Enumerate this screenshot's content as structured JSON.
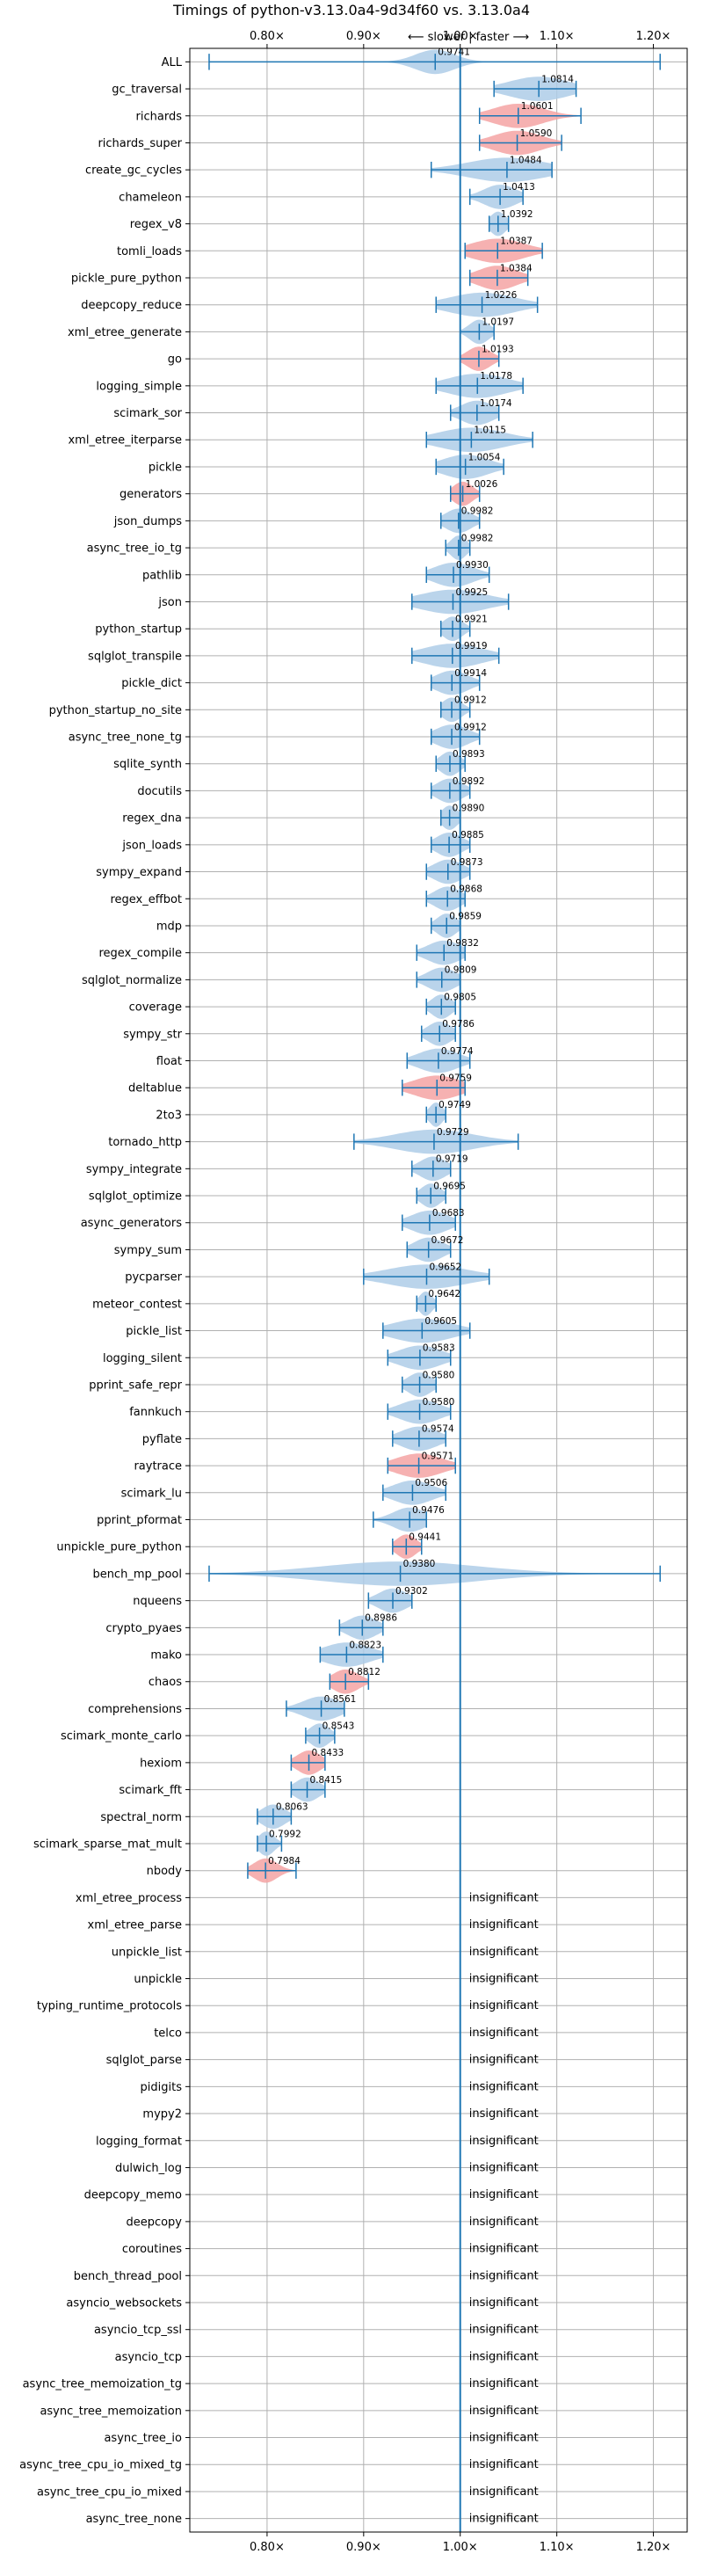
{
  "chart_data": {
    "type": "violin",
    "title": "Timings of python-v3.13.0a4-9d34f60 vs. 3.13.0a4",
    "subtitle": "⟵ slower | faster ⟶",
    "xlim": [
      0.72,
      1.235
    ],
    "xticks": [
      0.8,
      0.9,
      1.0,
      1.1,
      1.2
    ],
    "xtick_labels": [
      "0.80×",
      "0.90×",
      "1.00×",
      "1.10×",
      "1.20×"
    ],
    "reference_line": 1.0,
    "grid": true,
    "colors": {
      "faster": "#aecde8",
      "slower": "#f4a3a3",
      "line": "#1f77b4",
      "grid": "#b0b0b0"
    },
    "benchmarks": [
      {
        "name": "ALL",
        "value": 0.9741,
        "label": "0.9741",
        "min": 0.74,
        "max": 1.207,
        "width": 0.03,
        "color": "blue"
      },
      {
        "name": "gc_traversal",
        "value": 1.0814,
        "label": "1.0814",
        "min": 1.035,
        "max": 1.12,
        "width": 0.045,
        "color": "blue"
      },
      {
        "name": "richards",
        "value": 1.0601,
        "label": "1.0601",
        "min": 1.02,
        "max": 1.125,
        "width": 0.038,
        "color": "red"
      },
      {
        "name": "richards_super",
        "value": 1.059,
        "label": "1.0590",
        "min": 1.02,
        "max": 1.105,
        "width": 0.036,
        "color": "red"
      },
      {
        "name": "create_gc_cycles",
        "value": 1.0484,
        "label": "1.0484",
        "min": 0.97,
        "max": 1.095,
        "width": 0.06,
        "color": "blue"
      },
      {
        "name": "chameleon",
        "value": 1.0413,
        "label": "1.0413",
        "min": 1.01,
        "max": 1.065,
        "width": 0.025,
        "color": "blue"
      },
      {
        "name": "regex_v8",
        "value": 1.0392,
        "label": "1.0392",
        "min": 1.03,
        "max": 1.05,
        "width": 0.012,
        "color": "blue"
      },
      {
        "name": "tomli_loads",
        "value": 1.0387,
        "label": "1.0387",
        "min": 1.005,
        "max": 1.085,
        "width": 0.04,
        "color": "red"
      },
      {
        "name": "pickle_pure_python",
        "value": 1.0384,
        "label": "1.0384",
        "min": 1.01,
        "max": 1.07,
        "width": 0.03,
        "color": "red"
      },
      {
        "name": "deepcopy_reduce",
        "value": 1.0226,
        "label": "1.0226",
        "min": 0.975,
        "max": 1.08,
        "width": 0.05,
        "color": "blue"
      },
      {
        "name": "xml_etree_generate",
        "value": 1.0197,
        "label": "1.0197",
        "min": 1.0,
        "max": 1.035,
        "width": 0.015,
        "color": "blue"
      },
      {
        "name": "go",
        "value": 1.0193,
        "label": "1.0193",
        "min": 1.0,
        "max": 1.04,
        "width": 0.018,
        "color": "red"
      },
      {
        "name": "logging_simple",
        "value": 1.0178,
        "label": "1.0178",
        "min": 0.975,
        "max": 1.065,
        "width": 0.045,
        "color": "blue"
      },
      {
        "name": "scimark_sor",
        "value": 1.0174,
        "label": "1.0174",
        "min": 0.99,
        "max": 1.04,
        "width": 0.025,
        "color": "blue"
      },
      {
        "name": "xml_etree_iterparse",
        "value": 1.0115,
        "label": "1.0115",
        "min": 0.965,
        "max": 1.075,
        "width": 0.05,
        "color": "blue"
      },
      {
        "name": "pickle",
        "value": 1.0054,
        "label": "1.0054",
        "min": 0.975,
        "max": 1.045,
        "width": 0.035,
        "color": "blue"
      },
      {
        "name": "generators",
        "value": 1.0026,
        "label": "1.0026",
        "min": 0.99,
        "max": 1.02,
        "width": 0.015,
        "color": "red"
      },
      {
        "name": "json_dumps",
        "value": 0.9982,
        "label": "0.9982",
        "min": 0.98,
        "max": 1.02,
        "width": 0.02,
        "color": "blue"
      },
      {
        "name": "async_tree_io_tg",
        "value": 0.9982,
        "label": "0.9982",
        "min": 0.985,
        "max": 1.01,
        "width": 0.012,
        "color": "blue"
      },
      {
        "name": "pathlib",
        "value": 0.993,
        "label": "0.9930",
        "min": 0.965,
        "max": 1.03,
        "width": 0.03,
        "color": "blue"
      },
      {
        "name": "json",
        "value": 0.9925,
        "label": "0.9925",
        "min": 0.95,
        "max": 1.05,
        "width": 0.05,
        "color": "blue"
      },
      {
        "name": "python_startup",
        "value": 0.9921,
        "label": "0.9921",
        "min": 0.98,
        "max": 1.01,
        "width": 0.015,
        "color": "blue"
      },
      {
        "name": "sqlglot_transpile",
        "value": 0.9919,
        "label": "0.9919",
        "min": 0.95,
        "max": 1.04,
        "width": 0.045,
        "color": "blue"
      },
      {
        "name": "pickle_dict",
        "value": 0.9914,
        "label": "0.9914",
        "min": 0.97,
        "max": 1.02,
        "width": 0.025,
        "color": "blue"
      },
      {
        "name": "python_startup_no_site",
        "value": 0.9912,
        "label": "0.9912",
        "min": 0.98,
        "max": 1.01,
        "width": 0.015,
        "color": "blue"
      },
      {
        "name": "async_tree_none_tg",
        "value": 0.9912,
        "label": "0.9912",
        "min": 0.97,
        "max": 1.02,
        "width": 0.025,
        "color": "blue"
      },
      {
        "name": "sqlite_synth",
        "value": 0.9893,
        "label": "0.9893",
        "min": 0.975,
        "max": 1.005,
        "width": 0.015,
        "color": "blue"
      },
      {
        "name": "docutils",
        "value": 0.9892,
        "label": "0.9892",
        "min": 0.97,
        "max": 1.01,
        "width": 0.02,
        "color": "blue"
      },
      {
        "name": "regex_dna",
        "value": 0.989,
        "label": "0.9890",
        "min": 0.98,
        "max": 1.0,
        "width": 0.012,
        "color": "blue"
      },
      {
        "name": "json_loads",
        "value": 0.9885,
        "label": "0.9885",
        "min": 0.97,
        "max": 1.01,
        "width": 0.02,
        "color": "blue"
      },
      {
        "name": "sympy_expand",
        "value": 0.9873,
        "label": "0.9873",
        "min": 0.965,
        "max": 1.01,
        "width": 0.022,
        "color": "blue"
      },
      {
        "name": "regex_effbot",
        "value": 0.9868,
        "label": "0.9868",
        "min": 0.965,
        "max": 1.005,
        "width": 0.02,
        "color": "blue"
      },
      {
        "name": "mdp",
        "value": 0.9859,
        "label": "0.9859",
        "min": 0.97,
        "max": 1.0,
        "width": 0.015,
        "color": "blue"
      },
      {
        "name": "regex_compile",
        "value": 0.9832,
        "label": "0.9832",
        "min": 0.955,
        "max": 1.005,
        "width": 0.025,
        "color": "blue"
      },
      {
        "name": "sqlglot_normalize",
        "value": 0.9809,
        "label": "0.9809",
        "min": 0.955,
        "max": 1.0,
        "width": 0.022,
        "color": "blue"
      },
      {
        "name": "coverage",
        "value": 0.9805,
        "label": "0.9805",
        "min": 0.965,
        "max": 0.995,
        "width": 0.015,
        "color": "blue"
      },
      {
        "name": "sympy_str",
        "value": 0.9786,
        "label": "0.9786",
        "min": 0.96,
        "max": 0.995,
        "width": 0.018,
        "color": "blue"
      },
      {
        "name": "float",
        "value": 0.9774,
        "label": "0.9774",
        "min": 0.945,
        "max": 1.01,
        "width": 0.03,
        "color": "blue"
      },
      {
        "name": "deltablue",
        "value": 0.9759,
        "label": "0.9759",
        "min": 0.94,
        "max": 1.005,
        "width": 0.035,
        "color": "red"
      },
      {
        "name": "2to3",
        "value": 0.9749,
        "label": "0.9749",
        "min": 0.965,
        "max": 0.985,
        "width": 0.01,
        "color": "blue"
      },
      {
        "name": "tornado_http",
        "value": 0.9729,
        "label": "0.9729",
        "min": 0.89,
        "max": 1.06,
        "width": 0.06,
        "color": "blue"
      },
      {
        "name": "sympy_integrate",
        "value": 0.9719,
        "label": "0.9719",
        "min": 0.95,
        "max": 0.99,
        "width": 0.02,
        "color": "blue"
      },
      {
        "name": "sqlglot_optimize",
        "value": 0.9695,
        "label": "0.9695",
        "min": 0.955,
        "max": 0.985,
        "width": 0.015,
        "color": "blue"
      },
      {
        "name": "async_generators",
        "value": 0.9683,
        "label": "0.9683",
        "min": 0.94,
        "max": 0.995,
        "width": 0.028,
        "color": "blue"
      },
      {
        "name": "sympy_sum",
        "value": 0.9672,
        "label": "0.9672",
        "min": 0.945,
        "max": 0.99,
        "width": 0.022,
        "color": "blue"
      },
      {
        "name": "pycparser",
        "value": 0.9652,
        "label": "0.9652",
        "min": 0.9,
        "max": 1.03,
        "width": 0.06,
        "color": "blue"
      },
      {
        "name": "meteor_contest",
        "value": 0.9642,
        "label": "0.9642",
        "min": 0.955,
        "max": 0.975,
        "width": 0.01,
        "color": "blue"
      },
      {
        "name": "pickle_list",
        "value": 0.9605,
        "label": "0.9605",
        "min": 0.92,
        "max": 1.01,
        "width": 0.045,
        "color": "blue"
      },
      {
        "name": "logging_silent",
        "value": 0.9583,
        "label": "0.9583",
        "min": 0.925,
        "max": 0.99,
        "width": 0.032,
        "color": "blue"
      },
      {
        "name": "pprint_safe_repr",
        "value": 0.958,
        "label": "0.9580",
        "min": 0.94,
        "max": 0.975,
        "width": 0.018,
        "color": "blue"
      },
      {
        "name": "fannkuch",
        "value": 0.958,
        "label": "0.9580",
        "min": 0.925,
        "max": 0.99,
        "width": 0.03,
        "color": "blue"
      },
      {
        "name": "pyflate",
        "value": 0.9574,
        "label": "0.9574",
        "min": 0.93,
        "max": 0.985,
        "width": 0.028,
        "color": "blue"
      },
      {
        "name": "raytrace",
        "value": 0.9571,
        "label": "0.9571",
        "min": 0.925,
        "max": 0.995,
        "width": 0.035,
        "color": "red"
      },
      {
        "name": "scimark_lu",
        "value": 0.9506,
        "label": "0.9506",
        "min": 0.92,
        "max": 0.985,
        "width": 0.03,
        "color": "blue"
      },
      {
        "name": "pprint_pformat",
        "value": 0.9476,
        "label": "0.9476",
        "min": 0.91,
        "max": 0.965,
        "width": 0.025,
        "color": "blue"
      },
      {
        "name": "unpickle_pure_python",
        "value": 0.9441,
        "label": "0.9441",
        "min": 0.93,
        "max": 0.96,
        "width": 0.015,
        "color": "red"
      },
      {
        "name": "bench_mp_pool",
        "value": 0.938,
        "label": "0.9380",
        "min": 0.74,
        "max": 1.207,
        "width": 0.12,
        "color": "blue"
      },
      {
        "name": "nqueens",
        "value": 0.9302,
        "label": "0.9302",
        "min": 0.905,
        "max": 0.95,
        "width": 0.022,
        "color": "blue"
      },
      {
        "name": "crypto_pyaes",
        "value": 0.8986,
        "label": "0.8986",
        "min": 0.875,
        "max": 0.92,
        "width": 0.022,
        "color": "blue"
      },
      {
        "name": "mako",
        "value": 0.8823,
        "label": "0.8823",
        "min": 0.855,
        "max": 0.92,
        "width": 0.035,
        "color": "blue"
      },
      {
        "name": "chaos",
        "value": 0.8812,
        "label": "0.8812",
        "min": 0.865,
        "max": 0.905,
        "width": 0.02,
        "color": "red"
      },
      {
        "name": "comprehensions",
        "value": 0.8561,
        "label": "0.8561",
        "min": 0.82,
        "max": 0.88,
        "width": 0.028,
        "color": "blue"
      },
      {
        "name": "scimark_monte_carlo",
        "value": 0.8543,
        "label": "0.8543",
        "min": 0.84,
        "max": 0.87,
        "width": 0.015,
        "color": "blue"
      },
      {
        "name": "hexiom",
        "value": 0.8433,
        "label": "0.8433",
        "min": 0.825,
        "max": 0.86,
        "width": 0.018,
        "color": "red"
      },
      {
        "name": "scimark_fft",
        "value": 0.8415,
        "label": "0.8415",
        "min": 0.825,
        "max": 0.86,
        "width": 0.018,
        "color": "blue"
      },
      {
        "name": "spectral_norm",
        "value": 0.8063,
        "label": "0.8063",
        "min": 0.79,
        "max": 0.825,
        "width": 0.018,
        "color": "blue"
      },
      {
        "name": "scimark_sparse_mat_mult",
        "value": 0.7992,
        "label": "0.7992",
        "min": 0.79,
        "max": 0.815,
        "width": 0.012,
        "color": "blue"
      },
      {
        "name": "nbody",
        "value": 0.7984,
        "label": "0.7984",
        "min": 0.78,
        "max": 0.83,
        "width": 0.018,
        "color": "red"
      },
      {
        "name": "xml_etree_process",
        "insignificant": true
      },
      {
        "name": "xml_etree_parse",
        "insignificant": true
      },
      {
        "name": "unpickle_list",
        "insignificant": true
      },
      {
        "name": "unpickle",
        "insignificant": true
      },
      {
        "name": "typing_runtime_protocols",
        "insignificant": true
      },
      {
        "name": "telco",
        "insignificant": true
      },
      {
        "name": "sqlglot_parse",
        "insignificant": true
      },
      {
        "name": "pidigits",
        "insignificant": true
      },
      {
        "name": "mypy2",
        "insignificant": true
      },
      {
        "name": "logging_format",
        "insignificant": true
      },
      {
        "name": "dulwich_log",
        "insignificant": true
      },
      {
        "name": "deepcopy_memo",
        "insignificant": true
      },
      {
        "name": "deepcopy",
        "insignificant": true
      },
      {
        "name": "coroutines",
        "insignificant": true
      },
      {
        "name": "bench_thread_pool",
        "insignificant": true
      },
      {
        "name": "asyncio_websockets",
        "insignificant": true
      },
      {
        "name": "asyncio_tcp_ssl",
        "insignificant": true
      },
      {
        "name": "asyncio_tcp",
        "insignificant": true
      },
      {
        "name": "async_tree_memoization_tg",
        "insignificant": true
      },
      {
        "name": "async_tree_memoization",
        "insignificant": true
      },
      {
        "name": "async_tree_io",
        "insignificant": true
      },
      {
        "name": "async_tree_cpu_io_mixed_tg",
        "insignificant": true
      },
      {
        "name": "async_tree_cpu_io_mixed",
        "insignificant": true
      },
      {
        "name": "async_tree_none",
        "insignificant": true
      }
    ],
    "insignificant_label": "insignificant"
  }
}
